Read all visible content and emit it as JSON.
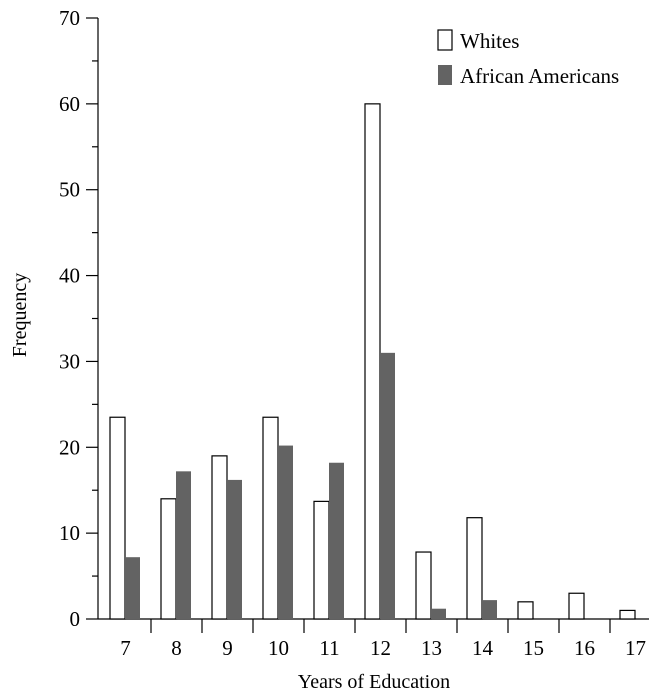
{
  "chart_data": {
    "type": "bar",
    "xlabel": "Years of Education",
    "ylabel": "Frequency",
    "ylim": [
      0,
      70
    ],
    "yticks": [
      0,
      10,
      20,
      30,
      40,
      50,
      60,
      70
    ],
    "categories": [
      "7",
      "8",
      "9",
      "10",
      "11",
      "12",
      "13",
      "14",
      "15",
      "16",
      "17"
    ],
    "series": [
      {
        "name": "Whites",
        "color": "#ffffff",
        "values": [
          23.5,
          14,
          19,
          23.5,
          13.7,
          60,
          7.8,
          11.8,
          2,
          3,
          1
        ]
      },
      {
        "name": "African Americans",
        "color": "#636363",
        "values": [
          7.2,
          17.2,
          16.2,
          20.2,
          18.2,
          31,
          1.2,
          2.2,
          0,
          0,
          0
        ]
      }
    ],
    "legend_position": "top-right",
    "grid": false
  }
}
